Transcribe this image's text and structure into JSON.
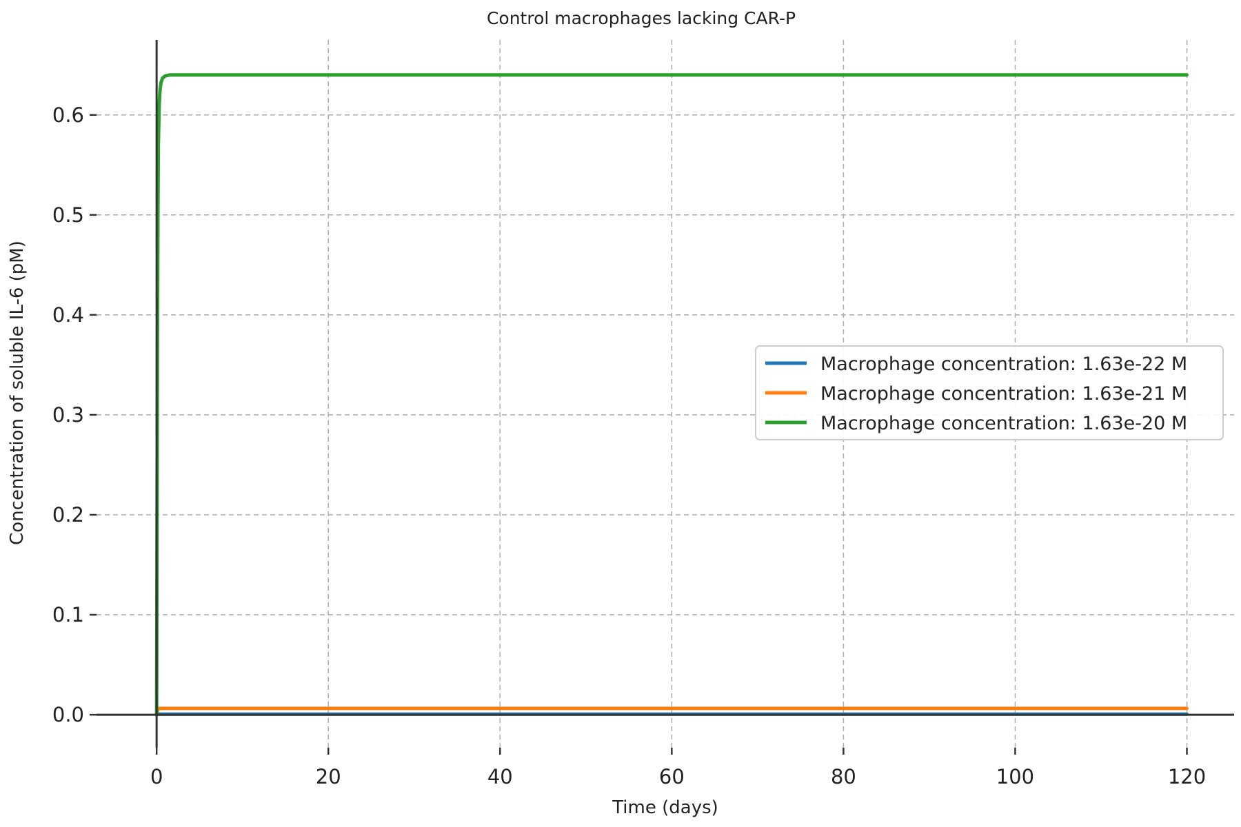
{
  "chart_data": {
    "type": "line",
    "title": "Control macrophages lacking CAR-P",
    "xlabel": "Time (days)",
    "ylabel": "Concentration of soluble IL-6 (pM)",
    "xlim": [
      -7,
      125.5
    ],
    "ylim": [
      -0.033,
      0.675
    ],
    "xticks": [
      0,
      20,
      40,
      60,
      80,
      100,
      120
    ],
    "yticks": [
      0.0,
      0.1,
      0.2,
      0.3,
      0.4,
      0.5,
      0.6
    ],
    "xtick_labels": [
      "0",
      "20",
      "40",
      "60",
      "80",
      "100",
      "120"
    ],
    "ytick_labels": [
      "0.0",
      "0.1",
      "0.2",
      "0.3",
      "0.4",
      "0.5",
      "0.6"
    ],
    "grid": true,
    "legend_position": "center-right",
    "series": [
      {
        "name": "Macrophage concentration: 1.63e-22 M",
        "color": "#1f77b4",
        "x": [
          0,
          0.1,
          0.2,
          0.3,
          0.5,
          0.7,
          1,
          2,
          5,
          10,
          20,
          40,
          60,
          80,
          100,
          120
        ],
        "y": [
          0,
          0.0004,
          0.0006,
          0.0006,
          0.0006,
          0.0006,
          0.0006,
          0.0006,
          0.0006,
          0.0006,
          0.0006,
          0.0006,
          0.0006,
          0.0006,
          0.0006,
          0.0006
        ]
      },
      {
        "name": "Macrophage concentration: 1.63e-21 M",
        "color": "#ff7f0e",
        "x": [
          0,
          0.1,
          0.2,
          0.3,
          0.5,
          0.7,
          1,
          2,
          5,
          10,
          20,
          40,
          60,
          80,
          100,
          120
        ],
        "y": [
          0,
          0.004,
          0.006,
          0.0064,
          0.0064,
          0.0064,
          0.0064,
          0.0064,
          0.0064,
          0.0064,
          0.0064,
          0.0064,
          0.0064,
          0.0064,
          0.0064,
          0.0064
        ]
      },
      {
        "name": "Macrophage concentration: 1.63e-20 M",
        "color": "#2ca02c",
        "x": [
          0,
          0.05,
          0.1,
          0.15,
          0.2,
          0.3,
          0.4,
          0.5,
          0.7,
          1,
          1.5,
          2,
          5,
          10,
          20,
          40,
          60,
          80,
          100,
          120
        ],
        "y": [
          0,
          0.2,
          0.38,
          0.5,
          0.57,
          0.61,
          0.625,
          0.632,
          0.637,
          0.639,
          0.64,
          0.64,
          0.64,
          0.64,
          0.64,
          0.64,
          0.64,
          0.64,
          0.64,
          0.64
        ]
      }
    ]
  }
}
